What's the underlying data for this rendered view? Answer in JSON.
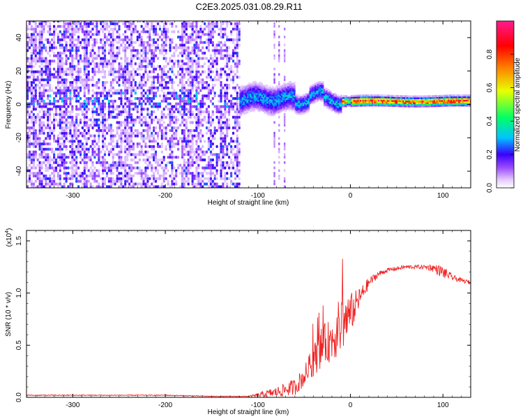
{
  "title": "C2E3.2025.031.08.29.R11",
  "chart_data": [
    {
      "type": "heatmap",
      "xlabel": "Height of straight line (km)",
      "ylabel": "Frequency (Hz)",
      "xlim": [
        -350,
        130
      ],
      "ylim": [
        -50,
        50
      ],
      "x_ticks": [
        -300,
        -200,
        -100,
        0,
        100
      ],
      "y_ticks": [
        -40,
        -20,
        0,
        20,
        40
      ],
      "colorbar": {
        "label": "Normalized spectral amplitude",
        "range": [
          0,
          1
        ],
        "ticks": [
          0.0,
          0.2,
          0.4,
          0.6,
          0.8
        ],
        "colors": [
          "#ffffff",
          "#d9b3ff",
          "#8a2be2",
          "#3b00ff",
          "#00c8ff",
          "#00ff60",
          "#e8ff00",
          "#ff7a00",
          "#ff0000",
          "#ff1493"
        ]
      },
      "regions": [
        {
          "x": [
            -350,
            -120
          ],
          "description_value": "broadband noise, amplitude 0.0-0.3 over -50..50 Hz"
        },
        {
          "x": [
            -120,
            -60
          ],
          "center_hz": 2,
          "spread_hz": 8,
          "amplitude": 0.3
        },
        {
          "x": [
            -60,
            -10
          ],
          "center_hz": 3,
          "spread_hz": 5,
          "amplitude": 0.35
        },
        {
          "x": [
            -10,
            130
          ],
          "center_hz": 2,
          "spread_hz": 2,
          "amplitude": 0.9
        }
      ]
    },
    {
      "type": "line",
      "xlabel": "Height of straight line (km)",
      "ylabel": "SNR (10 * v/v)",
      "y_exponent_label": "(x10",
      "y_exponent_power": "4",
      "xlim": [
        -350,
        130
      ],
      "ylim": [
        0,
        1.6
      ],
      "x_ticks": [
        -300,
        -200,
        -100,
        0,
        100
      ],
      "y_ticks": [
        "0.0",
        "0.5",
        "1.0",
        "1.5"
      ],
      "series_color": "#ee2222",
      "x": [
        -350,
        -300,
        -250,
        -200,
        -150,
        -110,
        -100,
        -80,
        -60,
        -50,
        -40,
        -30,
        -20,
        -10,
        0,
        10,
        20,
        30,
        40,
        60,
        80,
        90,
        100,
        110,
        120,
        130
      ],
      "values": [
        0.02,
        0.02,
        0.02,
        0.02,
        0.01,
        0.01,
        0.02,
        0.05,
        0.1,
        0.2,
        0.35,
        0.5,
        0.55,
        0.7,
        0.8,
        0.95,
        1.1,
        1.18,
        1.22,
        1.25,
        1.25,
        1.24,
        1.2,
        1.15,
        1.12,
        1.1
      ],
      "noise": [
        0.005,
        0.005,
        0.005,
        0.005,
        0.003,
        0.003,
        0.02,
        0.05,
        0.08,
        0.1,
        0.15,
        0.2,
        0.2,
        0.3,
        0.2,
        0.1,
        0.05,
        0.03,
        0.02,
        0.02,
        0.02,
        0.04,
        0.06,
        0.03,
        0.02,
        0.02
      ]
    }
  ]
}
